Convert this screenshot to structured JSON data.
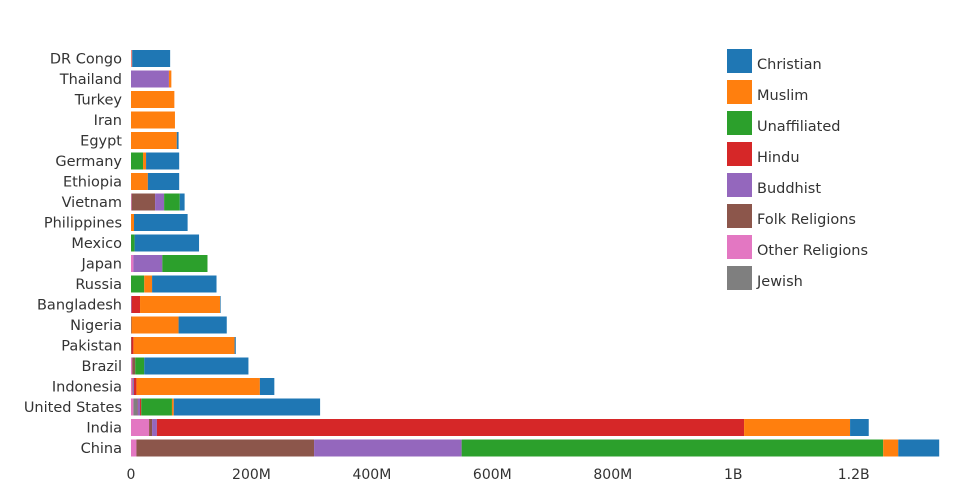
{
  "chart_data": {
    "type": "bar",
    "orientation": "horizontal",
    "stacked": true,
    "categories": [
      "China",
      "India",
      "United States",
      "Indonesia",
      "Brazil",
      "Pakistan",
      "Nigeria",
      "Bangladesh",
      "Russia",
      "Japan",
      "Mexico",
      "Philippines",
      "Vietnam",
      "Ethiopia",
      "Germany",
      "Egypt",
      "Iran",
      "Turkey",
      "Thailand",
      "DR Congo"
    ],
    "series": [
      {
        "name": "Other Religions",
        "color": "#e377c2",
        "values": [
          9,
          30,
          4,
          2,
          2,
          0,
          0,
          0,
          0,
          4,
          0,
          0,
          1,
          0,
          0,
          0,
          0,
          0,
          0,
          1
        ]
      },
      {
        "name": "Jewish",
        "color": "#7f7f7f",
        "values": [
          0,
          0,
          6,
          0,
          0,
          0,
          0,
          0,
          0,
          0,
          0,
          0,
          0,
          0,
          0,
          0,
          0,
          0,
          0,
          0
        ]
      },
      {
        "name": "Folk Religions",
        "color": "#8c564b",
        "values": [
          295,
          5,
          1,
          1,
          5,
          1,
          1,
          0,
          0,
          0,
          0,
          0,
          39,
          0,
          0,
          0,
          0,
          0,
          0,
          0
        ]
      },
      {
        "name": "Buddhist",
        "color": "#9467bd",
        "values": [
          245,
          8,
          4,
          2,
          0,
          0,
          0,
          1,
          0,
          48,
          0,
          0,
          15,
          0,
          0,
          0,
          0,
          0,
          63,
          0
        ]
      },
      {
        "name": "Hindu",
        "color": "#d62728",
        "values": [
          0,
          975,
          2,
          4,
          0,
          3,
          0,
          14,
          0,
          0,
          0,
          0,
          0,
          0,
          0,
          0,
          0,
          0,
          0,
          0
        ]
      },
      {
        "name": "Unaffiliated",
        "color": "#2ca02c",
        "values": [
          700,
          0,
          51,
          0,
          15,
          0,
          0,
          0,
          22,
          75,
          6,
          0,
          26,
          0,
          20,
          0,
          0,
          0,
          0,
          0
        ]
      },
      {
        "name": "Muslim",
        "color": "#ff7f0e",
        "values": [
          25,
          176,
          3,
          205,
          0,
          168,
          78,
          133,
          13,
          0,
          0,
          5,
          0,
          28,
          5,
          76,
          73,
          72,
          4,
          1
        ]
      },
      {
        "name": "Christian",
        "color": "#1f77b4",
        "values": [
          68,
          31,
          243,
          24,
          173,
          2,
          80,
          1,
          107,
          0,
          107,
          89,
          8,
          52,
          55,
          3,
          0,
          0,
          0,
          63
        ]
      }
    ],
    "legend_order": [
      "Christian",
      "Muslim",
      "Unaffiliated",
      "Hindu",
      "Buddhist",
      "Folk Religions",
      "Other Religions",
      "Jewish"
    ],
    "x_ticks": [
      {
        "value": 0,
        "label": "0"
      },
      {
        "value": 200,
        "label": "200M"
      },
      {
        "value": 400,
        "label": "400M"
      },
      {
        "value": 600,
        "label": "600M"
      },
      {
        "value": 800,
        "label": "800M"
      },
      {
        "value": 1000,
        "label": "1B"
      },
      {
        "value": 1200,
        "label": "1.2B"
      }
    ],
    "xlim": [
      0,
      1340
    ],
    "value_units": "millions of people",
    "grid": false,
    "legend_position": "top-right",
    "title": "",
    "xlabel": "",
    "ylabel": ""
  }
}
